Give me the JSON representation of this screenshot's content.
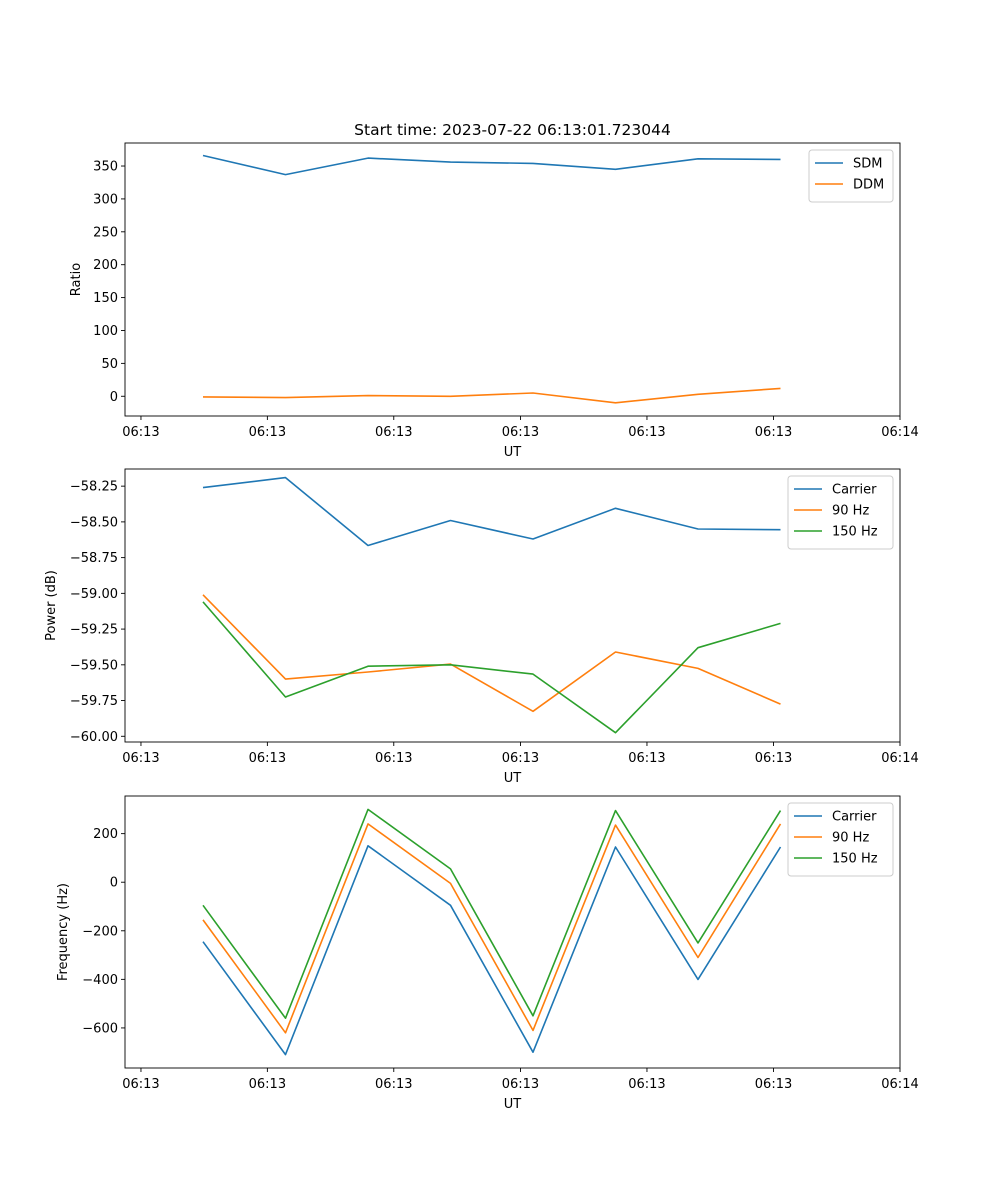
{
  "chart_data": [
    {
      "type": "line",
      "title": "Start time: 2023-07-22 06:13:01.723044",
      "xlabel": "UT",
      "ylabel": "Ratio",
      "x_tick_labels": [
        "06:13",
        "06:13",
        "06:13",
        "06:13",
        "06:13",
        "06:13",
        "06:14"
      ],
      "y_ticks": [
        0,
        50,
        100,
        150,
        200,
        250,
        300,
        350
      ],
      "ylim": [
        -30,
        385
      ],
      "legend_position": "top-right",
      "series": [
        {
          "name": "SDM",
          "color": "#1f77b4",
          "values": [
            366,
            337,
            362,
            356,
            354,
            345,
            361,
            360
          ]
        },
        {
          "name": "DDM",
          "color": "#ff7f0e",
          "values": [
            -1,
            -2,
            1,
            0,
            5,
            -10,
            3,
            12
          ]
        }
      ]
    },
    {
      "type": "line",
      "title": "",
      "xlabel": "UT",
      "ylabel": "Power (dB)",
      "x_tick_labels": [
        "06:13",
        "06:13",
        "06:13",
        "06:13",
        "06:13",
        "06:13",
        "06:14"
      ],
      "y_ticks": [
        -60.0,
        -59.75,
        -59.5,
        -59.25,
        -59.0,
        -58.75,
        -58.5,
        -58.25
      ],
      "y_tick_labels": [
        "−60.00",
        "−59.75",
        "−59.50",
        "−59.25",
        "−59.00",
        "−58.75",
        "−58.50",
        "−58.25"
      ],
      "ylim": [
        -60.04,
        -58.13
      ],
      "legend_position": "top-right",
      "series": [
        {
          "name": "Carrier",
          "color": "#1f77b4",
          "values": [
            -58.26,
            -58.19,
            -58.665,
            -58.49,
            -58.62,
            -58.405,
            -58.55,
            -58.555
          ]
        },
        {
          "name": "90 Hz",
          "color": "#ff7f0e",
          "values": [
            -59.01,
            -59.6,
            -59.55,
            -59.495,
            -59.825,
            -59.41,
            -59.525,
            -59.775
          ]
        },
        {
          "name": "150 Hz",
          "color": "#2ca02c",
          "values": [
            -59.06,
            -59.725,
            -59.51,
            -59.5,
            -59.565,
            -59.975,
            -59.38,
            -59.21
          ]
        }
      ]
    },
    {
      "type": "line",
      "title": "",
      "xlabel": "UT",
      "ylabel": "Frequency (Hz)",
      "x_tick_labels": [
        "06:13",
        "06:13",
        "06:13",
        "06:13",
        "06:13",
        "06:13",
        "06:14"
      ],
      "y_ticks": [
        -600,
        -400,
        -200,
        0,
        200
      ],
      "y_tick_labels": [
        "−600",
        "−400",
        "−200",
        "0",
        "200"
      ],
      "ylim": [
        -765,
        355
      ],
      "legend_position": "top-right",
      "series": [
        {
          "name": "Carrier",
          "color": "#1f77b4",
          "values": [
            -245,
            -710,
            150,
            -95,
            -700,
            145,
            -400,
            145
          ]
        },
        {
          "name": "90 Hz",
          "color": "#ff7f0e",
          "values": [
            -155,
            -620,
            240,
            -5,
            -610,
            235,
            -310,
            240
          ]
        },
        {
          "name": "150 Hz",
          "color": "#2ca02c",
          "values": [
            -95,
            -560,
            300,
            55,
            -550,
            295,
            -250,
            295
          ]
        }
      ]
    }
  ]
}
